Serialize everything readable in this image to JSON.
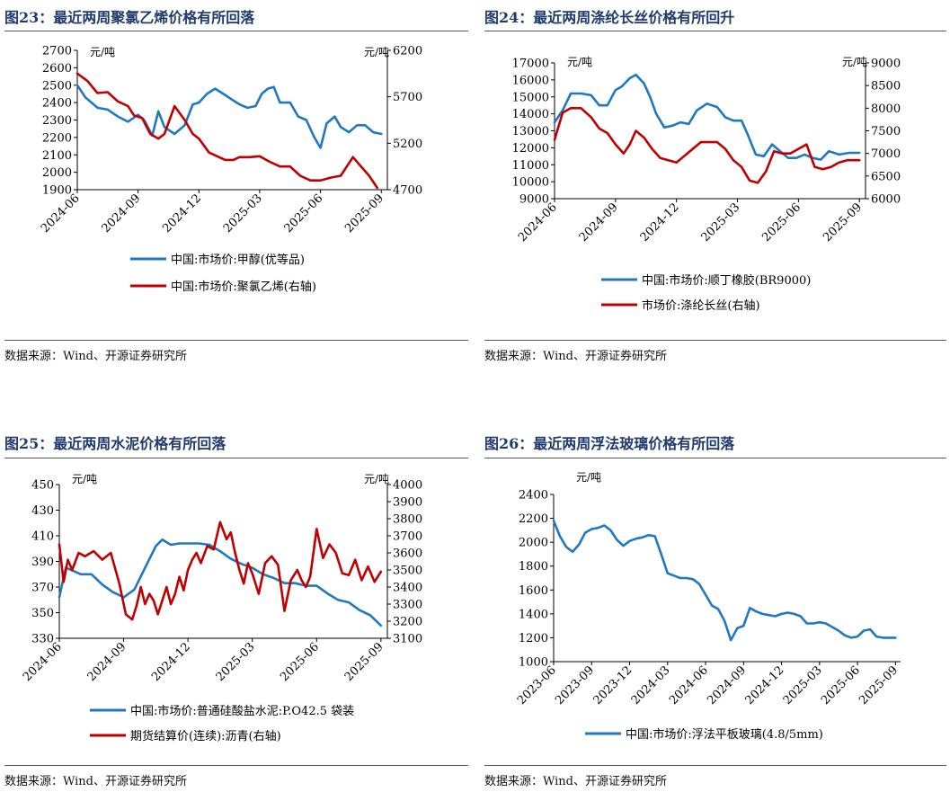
{
  "source_text": "数据来源：Wind、开源证券研究所",
  "colors": {
    "blue": "#1f78c1",
    "red": "#c00000",
    "title": "#1f3a6d"
  },
  "chart_data": [
    {
      "id": "fig23",
      "type": "line",
      "title": "图23：最近两周聚氯乙烯价格有所回落",
      "left_unit": "元/吨",
      "right_unit": "元/吨",
      "x_ticks": [
        "2024-06",
        "2024-09",
        "2024-12",
        "2025-03",
        "2025-06",
        "2025-09"
      ],
      "x_range": [
        0,
        15.3
      ],
      "ylim_left": [
        1900,
        2700
      ],
      "yticks_left": [
        1900,
        2000,
        2100,
        2200,
        2300,
        2400,
        2500,
        2600,
        2700
      ],
      "ylim_right": [
        4700,
        6200
      ],
      "yticks_right": [
        4700,
        5200,
        5700,
        6200
      ],
      "series": [
        {
          "name": "中国:市场价:甲醇(优等品)",
          "axis": "left",
          "color": "#1f78c1",
          "x": [
            0,
            0.4,
            1.0,
            1.5,
            2.0,
            2.5,
            3.0,
            3.3,
            3.7,
            4.0,
            4.3,
            4.8,
            5.3,
            5.7,
            6.0,
            6.4,
            6.8,
            7.2,
            7.6,
            8.0,
            8.4,
            8.8,
            9.1,
            9.4,
            9.7,
            10.0,
            10.5,
            10.9,
            11.3,
            11.7,
            12.0,
            12.3,
            12.7,
            13.0,
            13.4,
            13.8,
            14.2,
            14.6,
            15.0
          ],
          "values": [
            2500,
            2430,
            2370,
            2360,
            2320,
            2290,
            2330,
            2300,
            2210,
            2350,
            2260,
            2220,
            2270,
            2390,
            2400,
            2450,
            2480,
            2450,
            2420,
            2390,
            2370,
            2380,
            2450,
            2480,
            2490,
            2400,
            2400,
            2320,
            2300,
            2200,
            2140,
            2280,
            2320,
            2260,
            2230,
            2270,
            2270,
            2230,
            2220
          ]
        },
        {
          "name": "中国:市场价:聚氯乙烯(右轴)",
          "axis": "right",
          "color": "#c00000",
          "x": [
            0,
            0.5,
            1.0,
            1.5,
            2.0,
            2.5,
            2.8,
            3.2,
            3.6,
            4.0,
            4.3,
            4.8,
            5.3,
            5.7,
            6.0,
            6.5,
            7.0,
            7.3,
            7.7,
            8.0,
            8.5,
            9.0,
            9.5,
            10.0,
            10.5,
            11.0,
            11.5,
            12.0,
            12.5,
            13.0,
            13.3,
            13.6,
            14.0,
            14.4,
            14.8
          ],
          "values": [
            5950,
            5870,
            5740,
            5750,
            5650,
            5600,
            5500,
            5470,
            5300,
            5250,
            5300,
            5600,
            5450,
            5300,
            5250,
            5100,
            5050,
            5020,
            5020,
            5050,
            5050,
            5060,
            5000,
            4950,
            4950,
            4850,
            4800,
            4800,
            4830,
            4850,
            4950,
            5050,
            4950,
            4850,
            4720
          ]
        }
      ]
    },
    {
      "id": "fig24",
      "type": "line",
      "title": "图24：最近两周涤纶长丝价格有所回升",
      "left_unit": "元/吨",
      "right_unit": "元/吨",
      "x_ticks": [
        "2024-06",
        "2024-09",
        "2024-12",
        "2025-03",
        "2025-06",
        "2025-09"
      ],
      "x_range": [
        0,
        15.3
      ],
      "ylim_left": [
        9000,
        17000
      ],
      "yticks_left": [
        9000,
        10000,
        11000,
        12000,
        13000,
        14000,
        15000,
        16000,
        17000
      ],
      "ylim_right": [
        6000,
        9000
      ],
      "yticks_right": [
        6000,
        6500,
        7000,
        7500,
        8000,
        8500,
        9000
      ],
      "series": [
        {
          "name": "中国:市场价:顺丁橡胶(BR9000)",
          "axis": "left",
          "color": "#1f78c1",
          "x": [
            0,
            0.4,
            0.8,
            1.3,
            1.8,
            2.2,
            2.6,
            3.0,
            3.3,
            3.7,
            4.0,
            4.4,
            4.7,
            5.0,
            5.4,
            5.8,
            6.2,
            6.6,
            7.0,
            7.5,
            8.0,
            8.4,
            8.8,
            9.2,
            9.5,
            9.9,
            10.3,
            10.7,
            11.1,
            11.5,
            11.9,
            12.3,
            12.7,
            13.1,
            13.5,
            14.0,
            14.5,
            15.0
          ],
          "values": [
            13500,
            14200,
            15200,
            15200,
            15100,
            14500,
            14500,
            15400,
            15600,
            16100,
            16300,
            15800,
            15000,
            14000,
            13200,
            13300,
            13500,
            13400,
            14200,
            14600,
            14400,
            13800,
            13600,
            13600,
            12800,
            11600,
            11500,
            12200,
            11800,
            11400,
            11400,
            11600,
            11400,
            11300,
            11800,
            11600,
            11700,
            11700
          ]
        },
        {
          "name": "市场价:涤纶长丝(右轴)",
          "axis": "right",
          "color": "#c00000",
          "x": [
            0,
            0.4,
            0.8,
            1.3,
            1.8,
            2.2,
            2.6,
            3.0,
            3.4,
            3.7,
            4.0,
            4.4,
            4.8,
            5.2,
            5.6,
            6.0,
            6.4,
            6.8,
            7.2,
            7.6,
            8.0,
            8.4,
            8.8,
            9.2,
            9.6,
            10.0,
            10.4,
            10.8,
            11.2,
            11.6,
            12.0,
            12.4,
            12.8,
            13.2,
            13.6,
            14.0,
            14.4,
            14.8,
            15.0
          ],
          "values": [
            7300,
            7900,
            8000,
            8000,
            7800,
            7550,
            7450,
            7200,
            7000,
            7200,
            7500,
            7350,
            7100,
            6900,
            6850,
            6800,
            6950,
            7100,
            7250,
            7250,
            7250,
            7100,
            6850,
            6700,
            6400,
            6350,
            6600,
            7050,
            7000,
            7000,
            7100,
            7200,
            6700,
            6650,
            6700,
            6800,
            6850,
            6850,
            6850
          ]
        }
      ]
    },
    {
      "id": "fig25",
      "type": "line",
      "title": "图25：最近两周水泥价格有所回落",
      "left_unit": "元/吨",
      "right_unit": "元/吨",
      "x_ticks": [
        "2024-06",
        "2024-09",
        "2024-12",
        "2025-03",
        "2025-06",
        "2025-09"
      ],
      "x_range": [
        0,
        15.3
      ],
      "ylim_left": [
        330,
        450
      ],
      "yticks_left": [
        330,
        350,
        370,
        390,
        410,
        430,
        450
      ],
      "ylim_right": [
        3100,
        4000
      ],
      "yticks_right": [
        3100,
        3200,
        3300,
        3400,
        3500,
        3600,
        3700,
        3800,
        3900,
        4000
      ],
      "series": [
        {
          "name": "中国:市场价:普通硅酸盐水泥:P.O42.5 袋装",
          "axis": "left",
          "color": "#1f78c1",
          "x": [
            0,
            0.3,
            0.6,
            1.0,
            1.5,
            2.0,
            2.5,
            3.0,
            3.5,
            4.0,
            4.5,
            4.8,
            5.2,
            5.6,
            6.0,
            6.5,
            7.0,
            7.5,
            8.0,
            8.5,
            9.0,
            9.5,
            10.0,
            10.5,
            11.0,
            11.5,
            12.0,
            12.5,
            13.0,
            13.5,
            14.0,
            14.5,
            15.0
          ],
          "values": [
            362,
            385,
            383,
            380,
            380,
            372,
            366,
            362,
            368,
            385,
            402,
            407,
            403,
            404,
            404,
            404,
            403,
            398,
            392,
            388,
            385,
            380,
            377,
            373,
            373,
            371,
            371,
            365,
            360,
            358,
            352,
            348,
            340
          ]
        },
        {
          "name": "期货结算价(连续):沥青(右轴)",
          "axis": "right",
          "color": "#c00000",
          "x": [
            0,
            0.2,
            0.4,
            0.6,
            0.9,
            1.2,
            1.6,
            2.0,
            2.4,
            2.8,
            3.1,
            3.4,
            3.6,
            3.8,
            4.0,
            4.2,
            4.4,
            4.6,
            4.8,
            5.0,
            5.2,
            5.4,
            5.6,
            5.8,
            6.0,
            6.2,
            6.4,
            6.6,
            6.9,
            7.2,
            7.5,
            7.8,
            8.0,
            8.2,
            8.4,
            8.6,
            8.8,
            9.0,
            9.3,
            9.6,
            9.9,
            10.2,
            10.5,
            10.8,
            11.1,
            11.3,
            11.5,
            11.7,
            12.0,
            12.3,
            12.6,
            12.9,
            13.2,
            13.5,
            13.8,
            14.1,
            14.4,
            14.7,
            15.0
          ],
          "values": [
            3650,
            3430,
            3560,
            3500,
            3600,
            3580,
            3610,
            3560,
            3600,
            3420,
            3240,
            3210,
            3290,
            3400,
            3300,
            3360,
            3320,
            3240,
            3320,
            3400,
            3300,
            3360,
            3460,
            3380,
            3500,
            3560,
            3600,
            3540,
            3640,
            3620,
            3780,
            3680,
            3720,
            3600,
            3500,
            3420,
            3540,
            3480,
            3360,
            3540,
            3580,
            3530,
            3260,
            3440,
            3500,
            3440,
            3400,
            3460,
            3740,
            3570,
            3650,
            3600,
            3480,
            3470,
            3560,
            3440,
            3520,
            3430,
            3490
          ]
        }
      ]
    },
    {
      "id": "fig26",
      "type": "line",
      "title": "图26：最近两周浮法玻璃价格有所回落",
      "left_unit": "元/吨",
      "x_ticks": [
        "2023-06",
        "2023-09",
        "2023-12",
        "2024-03",
        "2024-06",
        "2024-09",
        "2024-12",
        "2025-03",
        "2025-06",
        "2025-09"
      ],
      "x_range": [
        0,
        27.4
      ],
      "ylim_left": [
        1000,
        2400
      ],
      "yticks_left": [
        1000,
        1200,
        1400,
        1600,
        1800,
        2000,
        2200,
        2400
      ],
      "series": [
        {
          "name": "中国:市场价:浮法平板玻璃(4.8/5mm)",
          "axis": "left",
          "color": "#1f78c1",
          "x": [
            0,
            0.5,
            1.0,
            1.5,
            2.0,
            2.5,
            3.0,
            3.5,
            4.0,
            4.5,
            5.0,
            5.5,
            6.0,
            6.5,
            7.0,
            7.5,
            8.0,
            8.5,
            9.0,
            9.5,
            10.0,
            10.5,
            11.0,
            11.5,
            12.0,
            12.5,
            13.0,
            13.5,
            14.0,
            14.5,
            15.0,
            15.5,
            16.0,
            16.5,
            17.0,
            17.5,
            18.0,
            18.5,
            19.0,
            19.5,
            20.0,
            20.5,
            21.0,
            21.5,
            22.0,
            22.5,
            23.0,
            23.5,
            24.0,
            24.5,
            25.0,
            25.5,
            26.0,
            26.5,
            27.0
          ],
          "values": [
            2180,
            2050,
            1960,
            1920,
            1980,
            2080,
            2110,
            2120,
            2140,
            2100,
            2020,
            1970,
            2010,
            2030,
            2040,
            2060,
            2050,
            1900,
            1740,
            1720,
            1700,
            1700,
            1690,
            1650,
            1560,
            1470,
            1440,
            1340,
            1180,
            1280,
            1300,
            1450,
            1420,
            1400,
            1390,
            1380,
            1400,
            1410,
            1400,
            1380,
            1320,
            1320,
            1330,
            1320,
            1290,
            1260,
            1220,
            1200,
            1210,
            1260,
            1270,
            1210,
            1200,
            1200,
            1200
          ]
        }
      ]
    }
  ]
}
